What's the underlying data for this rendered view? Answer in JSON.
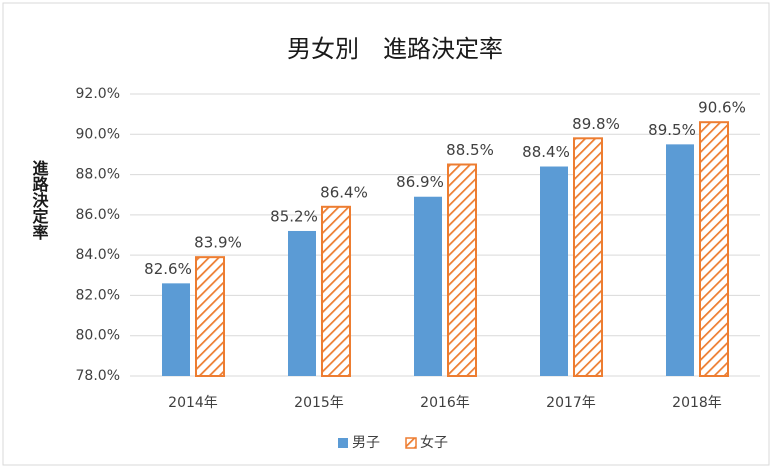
{
  "chart_data": {
    "type": "bar",
    "title": "男女別　進路決定率",
    "y_label": "進路決定率",
    "categories": [
      "2014年",
      "2015年",
      "2016年",
      "2017年",
      "2018年"
    ],
    "series": [
      {
        "name": "男子",
        "color": "#5b9bd5",
        "hatch": false,
        "values": [
          82.6,
          85.2,
          86.9,
          88.4,
          89.5
        ],
        "value_labels": [
          "82.6%",
          "85.2%",
          "86.9%",
          "88.4%",
          "89.5%"
        ]
      },
      {
        "name": "女子",
        "color": "#ed7d31",
        "hatch": true,
        "values": [
          83.9,
          86.4,
          88.5,
          89.8,
          90.6
        ],
        "value_labels": [
          "83.9%",
          "86.4%",
          "88.5%",
          "89.8%",
          "90.6%"
        ]
      }
    ],
    "ylim": [
      78,
      92
    ],
    "yticks": [
      {
        "value": 78,
        "label": "78.0%"
      },
      {
        "value": 80,
        "label": "80.0%"
      },
      {
        "value": 82,
        "label": "82.0%"
      },
      {
        "value": 84,
        "label": "84.0%"
      },
      {
        "value": 86,
        "label": "86.0%"
      },
      {
        "value": 88,
        "label": "88.0%"
      },
      {
        "value": 90,
        "label": "90.0%"
      },
      {
        "value": 92,
        "label": "92.0%"
      }
    ],
    "grid": true,
    "legend": "bottom"
  }
}
